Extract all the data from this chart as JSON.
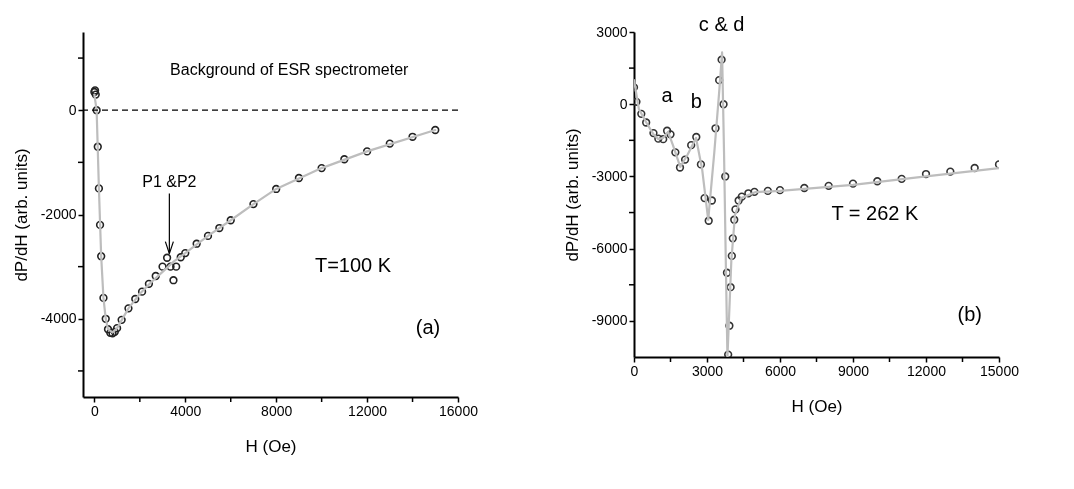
{
  "chart_data": [
    {
      "type": "scatter",
      "xlabel": "H (Oe)",
      "ylabel": "dP/dH (arb. units)",
      "xlim": [
        -500,
        16000
      ],
      "ylim": [
        -5500,
        1500
      ],
      "xticks": [
        0,
        {
          "value": 2000,
          "label": null
        },
        4000,
        {
          "value": 6000,
          "label": null
        },
        8000,
        {
          "value": 10000,
          "label": null
        },
        12000,
        {
          "value": 14000,
          "label": null
        },
        16000
      ],
      "yticks": [
        {
          "value": 1000,
          "label": null
        },
        0,
        {
          "value": -1000,
          "label": null
        },
        -2000,
        {
          "value": -3000,
          "label": null
        },
        -4000,
        {
          "value": -5000,
          "label": null
        }
      ],
      "grid": false,
      "ref_lines": [
        {
          "axis": "y",
          "value": 0,
          "label": "Background of ESR spectrometer",
          "line_style": "dashed",
          "color": "#000000"
        }
      ],
      "annotations": [
        {
          "text": "P1 &P2",
          "x": 3300,
          "y": -2750
        },
        "T=100 K",
        "(a)"
      ],
      "series": [
        {
          "type": "scatter",
          "marker": "circle",
          "color": "#222222",
          "x": [
            0,
            30,
            60,
            100,
            150,
            200,
            250,
            300,
            400,
            500,
            600,
            700,
            800,
            900,
            1000,
            1200,
            1500,
            1800,
            2100,
            2400,
            2700,
            3000,
            3200,
            3350,
            3480,
            3600,
            3800,
            4000,
            4500,
            5000,
            5500,
            6000,
            7000,
            8000,
            9000,
            10000,
            11000,
            12000,
            13000,
            14000,
            15000
          ],
          "values": [
            350,
            380,
            300,
            0,
            -700,
            -1500,
            -2200,
            -2800,
            -3600,
            -4000,
            -4200,
            -4270,
            -4280,
            -4250,
            -4180,
            -4020,
            -3800,
            -3620,
            -3480,
            -3330,
            -3180,
            -3000,
            -2830,
            -3000,
            -3260,
            -3000,
            -2820,
            -2740,
            -2560,
            -2410,
            -2260,
            -2110,
            -1800,
            -1510,
            -1300,
            -1110,
            -940,
            -790,
            -640,
            -510,
            -380
          ]
        },
        {
          "type": "line",
          "color": "#bdbdbd",
          "x": [
            0,
            100,
            200,
            300,
            400,
            500,
            600,
            800,
            1000,
            1500,
            2000,
            2500,
            3000,
            3500,
            4000,
            5000,
            6000,
            7000,
            8000,
            10000,
            12000,
            15000
          ],
          "values": [
            300,
            0,
            -1500,
            -2800,
            -3600,
            -4000,
            -4200,
            -4260,
            -4180,
            -3800,
            -3520,
            -3300,
            -3100,
            -2900,
            -2740,
            -2410,
            -2110,
            -1800,
            -1510,
            -1110,
            -790,
            -380
          ]
        }
      ]
    },
    {
      "type": "scatter",
      "xlabel": "H (Oe)",
      "ylabel": "dP/dH (arb. units)",
      "xlim": [
        0,
        15000
      ],
      "ylim": [
        -10500,
        3000
      ],
      "xticks": [
        0,
        {
          "value": 1500,
          "label": null
        },
        3000,
        {
          "value": 4500,
          "label": null
        },
        6000,
        {
          "value": 7500,
          "label": null
        },
        9000,
        {
          "value": 10500,
          "label": null
        },
        12000,
        {
          "value": 13500,
          "label": null
        },
        15000
      ],
      "yticks": [
        3000,
        {
          "value": 1500,
          "label": null
        },
        0,
        {
          "value": -1500,
          "label": null
        },
        -3000,
        {
          "value": -4500,
          "label": null
        },
        -6000,
        {
          "value": -7500,
          "label": null
        },
        -9000
      ],
      "grid": false,
      "annotations": [
        {
          "text": "a",
          "x": 1360,
          "y": -1100
        },
        {
          "text": "b",
          "x": 2560,
          "y": -1360
        },
        {
          "text": "c & d",
          "x": 3600,
          "y": 1850
        },
        "T = 262 K",
        "(b)"
      ],
      "series": [
        {
          "type": "scatter",
          "marker": "circle",
          "color": "#333333",
          "x": [
            0,
            100,
            300,
            500,
            800,
            1000,
            1200,
            1360,
            1500,
            1700,
            1890,
            2100,
            2350,
            2560,
            2750,
            2900,
            3070,
            3200,
            3350,
            3500,
            3600,
            3680,
            3750,
            3820,
            3870,
            3920,
            3970,
            4020,
            4060,
            4120,
            4170,
            4300,
            4430,
            4700,
            4950,
            5500,
            6000,
            7000,
            8000,
            9000,
            10000,
            11000,
            12000,
            13000,
            14000,
            15000
          ],
          "values": [
            700,
            100,
            -400,
            -760,
            -1200,
            -1430,
            -1450,
            -1100,
            -1250,
            -2000,
            -2630,
            -2300,
            -1700,
            -1360,
            -2500,
            -3900,
            -4840,
            -4000,
            -1000,
            1000,
            1850,
            0,
            -3000,
            -7000,
            -10400,
            -9200,
            -7600,
            -6300,
            -5570,
            -4800,
            -4370,
            -4000,
            -3840,
            -3700,
            -3640,
            -3600,
            -3570,
            -3480,
            -3390,
            -3300,
            -3200,
            -3100,
            -2900,
            -2800,
            -2650,
            -2500
          ]
        },
        {
          "type": "line",
          "color": "#bdbdbd",
          "x": [
            0,
            200,
            500,
            800,
            1000,
            1200,
            1400,
            1600,
            1900,
            2200,
            2550,
            2800,
            3050,
            3300,
            3500,
            3620,
            3700,
            3780,
            3840,
            3900,
            4000,
            4150,
            4400,
            5000,
            6000,
            9000,
            12000,
            15000
          ],
          "values": [
            1000,
            -200,
            -750,
            -1250,
            -1450,
            -1400,
            -1150,
            -1700,
            -2600,
            -2100,
            -1400,
            -2700,
            -4800,
            -2000,
            500,
            2150,
            -2000,
            -7000,
            -10500,
            -9000,
            -6500,
            -4600,
            -3900,
            -3650,
            -3600,
            -3350,
            -3000,
            -2650
          ]
        }
      ]
    }
  ]
}
